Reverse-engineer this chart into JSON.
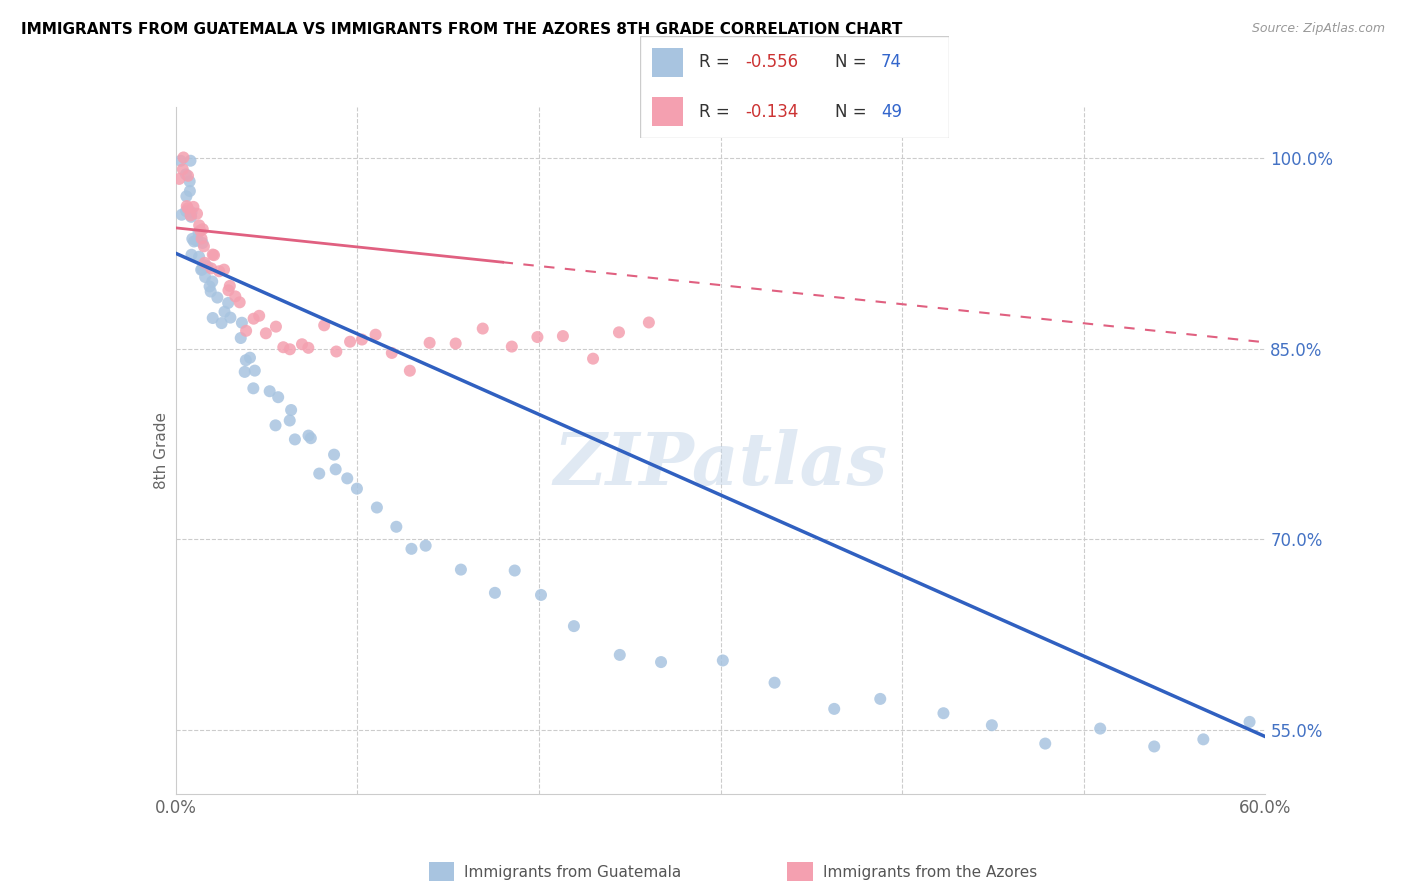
{
  "title": "IMMIGRANTS FROM GUATEMALA VS IMMIGRANTS FROM THE AZORES 8TH GRADE CORRELATION CHART",
  "source": "Source: ZipAtlas.com",
  "ylabel": "8th Grade",
  "watermark": "ZIPatlas",
  "legend_r1": "R = -0.556",
  "legend_n1": "N = 74",
  "legend_r2": "R = -0.134",
  "legend_n2": "N = 49",
  "color_blue": "#a8c4e0",
  "color_pink": "#f4a0b0",
  "line_blue": "#3060c0",
  "line_pink": "#e06080",
  "xlim": [
    0.0,
    0.6
  ],
  "ylim": [
    0.5,
    1.04
  ],
  "y_ticks": [
    0.55,
    0.7,
    0.85,
    1.0
  ],
  "y_tick_labels": [
    "55.0%",
    "70.0%",
    "85.0%",
    "100.0%"
  ],
  "x_ticks": [
    0.0,
    0.1,
    0.2,
    0.3,
    0.4,
    0.5,
    0.6
  ],
  "x_tick_labels": [
    "0.0%",
    "",
    "",
    "",
    "",
    "",
    "60.0%"
  ],
  "guat_line_x0": 0.0,
  "guat_line_y0": 0.925,
  "guat_line_x1": 0.6,
  "guat_line_y1": 0.545,
  "azores_line_x0": 0.0,
  "azores_line_y0": 0.945,
  "azores_line_x1": 0.6,
  "azores_line_y1": 0.855,
  "guat_x": [
    0.003,
    0.004,
    0.005,
    0.005,
    0.006,
    0.006,
    0.007,
    0.007,
    0.008,
    0.008,
    0.009,
    0.01,
    0.01,
    0.011,
    0.012,
    0.012,
    0.013,
    0.014,
    0.015,
    0.015,
    0.016,
    0.017,
    0.018,
    0.019,
    0.02,
    0.021,
    0.022,
    0.023,
    0.025,
    0.027,
    0.028,
    0.03,
    0.032,
    0.035,
    0.037,
    0.04,
    0.042,
    0.044,
    0.047,
    0.05,
    0.053,
    0.056,
    0.06,
    0.065,
    0.068,
    0.072,
    0.076,
    0.08,
    0.085,
    0.09,
    0.095,
    0.1,
    0.11,
    0.12,
    0.13,
    0.14,
    0.155,
    0.17,
    0.185,
    0.2,
    0.22,
    0.245,
    0.27,
    0.3,
    0.33,
    0.36,
    0.39,
    0.42,
    0.45,
    0.48,
    0.51,
    0.54,
    0.57,
    0.59
  ],
  "guat_y": [
    0.99,
    0.985,
    0.98,
    0.975,
    0.975,
    0.968,
    0.965,
    0.96,
    0.96,
    0.955,
    0.95,
    0.945,
    0.94,
    0.938,
    0.932,
    0.928,
    0.925,
    0.92,
    0.915,
    0.91,
    0.908,
    0.905,
    0.9,
    0.898,
    0.892,
    0.888,
    0.885,
    0.882,
    0.878,
    0.87,
    0.865,
    0.858,
    0.855,
    0.85,
    0.842,
    0.838,
    0.832,
    0.828,
    0.82,
    0.815,
    0.808,
    0.8,
    0.795,
    0.788,
    0.78,
    0.775,
    0.768,
    0.762,
    0.752,
    0.745,
    0.738,
    0.73,
    0.718,
    0.71,
    0.7,
    0.69,
    0.675,
    0.665,
    0.658,
    0.648,
    0.635,
    0.625,
    0.612,
    0.6,
    0.59,
    0.58,
    0.572,
    0.565,
    0.558,
    0.552,
    0.548,
    0.548,
    0.545,
    0.545
  ],
  "azores_x": [
    0.003,
    0.004,
    0.005,
    0.006,
    0.007,
    0.008,
    0.009,
    0.01,
    0.011,
    0.012,
    0.013,
    0.014,
    0.015,
    0.016,
    0.017,
    0.018,
    0.02,
    0.022,
    0.024,
    0.026,
    0.028,
    0.03,
    0.033,
    0.036,
    0.039,
    0.042,
    0.046,
    0.05,
    0.055,
    0.06,
    0.065,
    0.07,
    0.076,
    0.082,
    0.088,
    0.095,
    0.102,
    0.11,
    0.12,
    0.13,
    0.14,
    0.155,
    0.17,
    0.185,
    0.2,
    0.215,
    0.23,
    0.245,
    0.26
  ],
  "azores_y": [
    0.99,
    0.985,
    0.98,
    0.975,
    0.97,
    0.965,
    0.96,
    0.958,
    0.955,
    0.95,
    0.945,
    0.94,
    0.938,
    0.932,
    0.928,
    0.925,
    0.918,
    0.912,
    0.908,
    0.902,
    0.895,
    0.892,
    0.885,
    0.882,
    0.878,
    0.872,
    0.865,
    0.862,
    0.858,
    0.855,
    0.852,
    0.848,
    0.862,
    0.855,
    0.85,
    0.845,
    0.862,
    0.855,
    0.85,
    0.845,
    0.858,
    0.855,
    0.862,
    0.858,
    0.855,
    0.862,
    0.858,
    0.855,
    0.862
  ]
}
